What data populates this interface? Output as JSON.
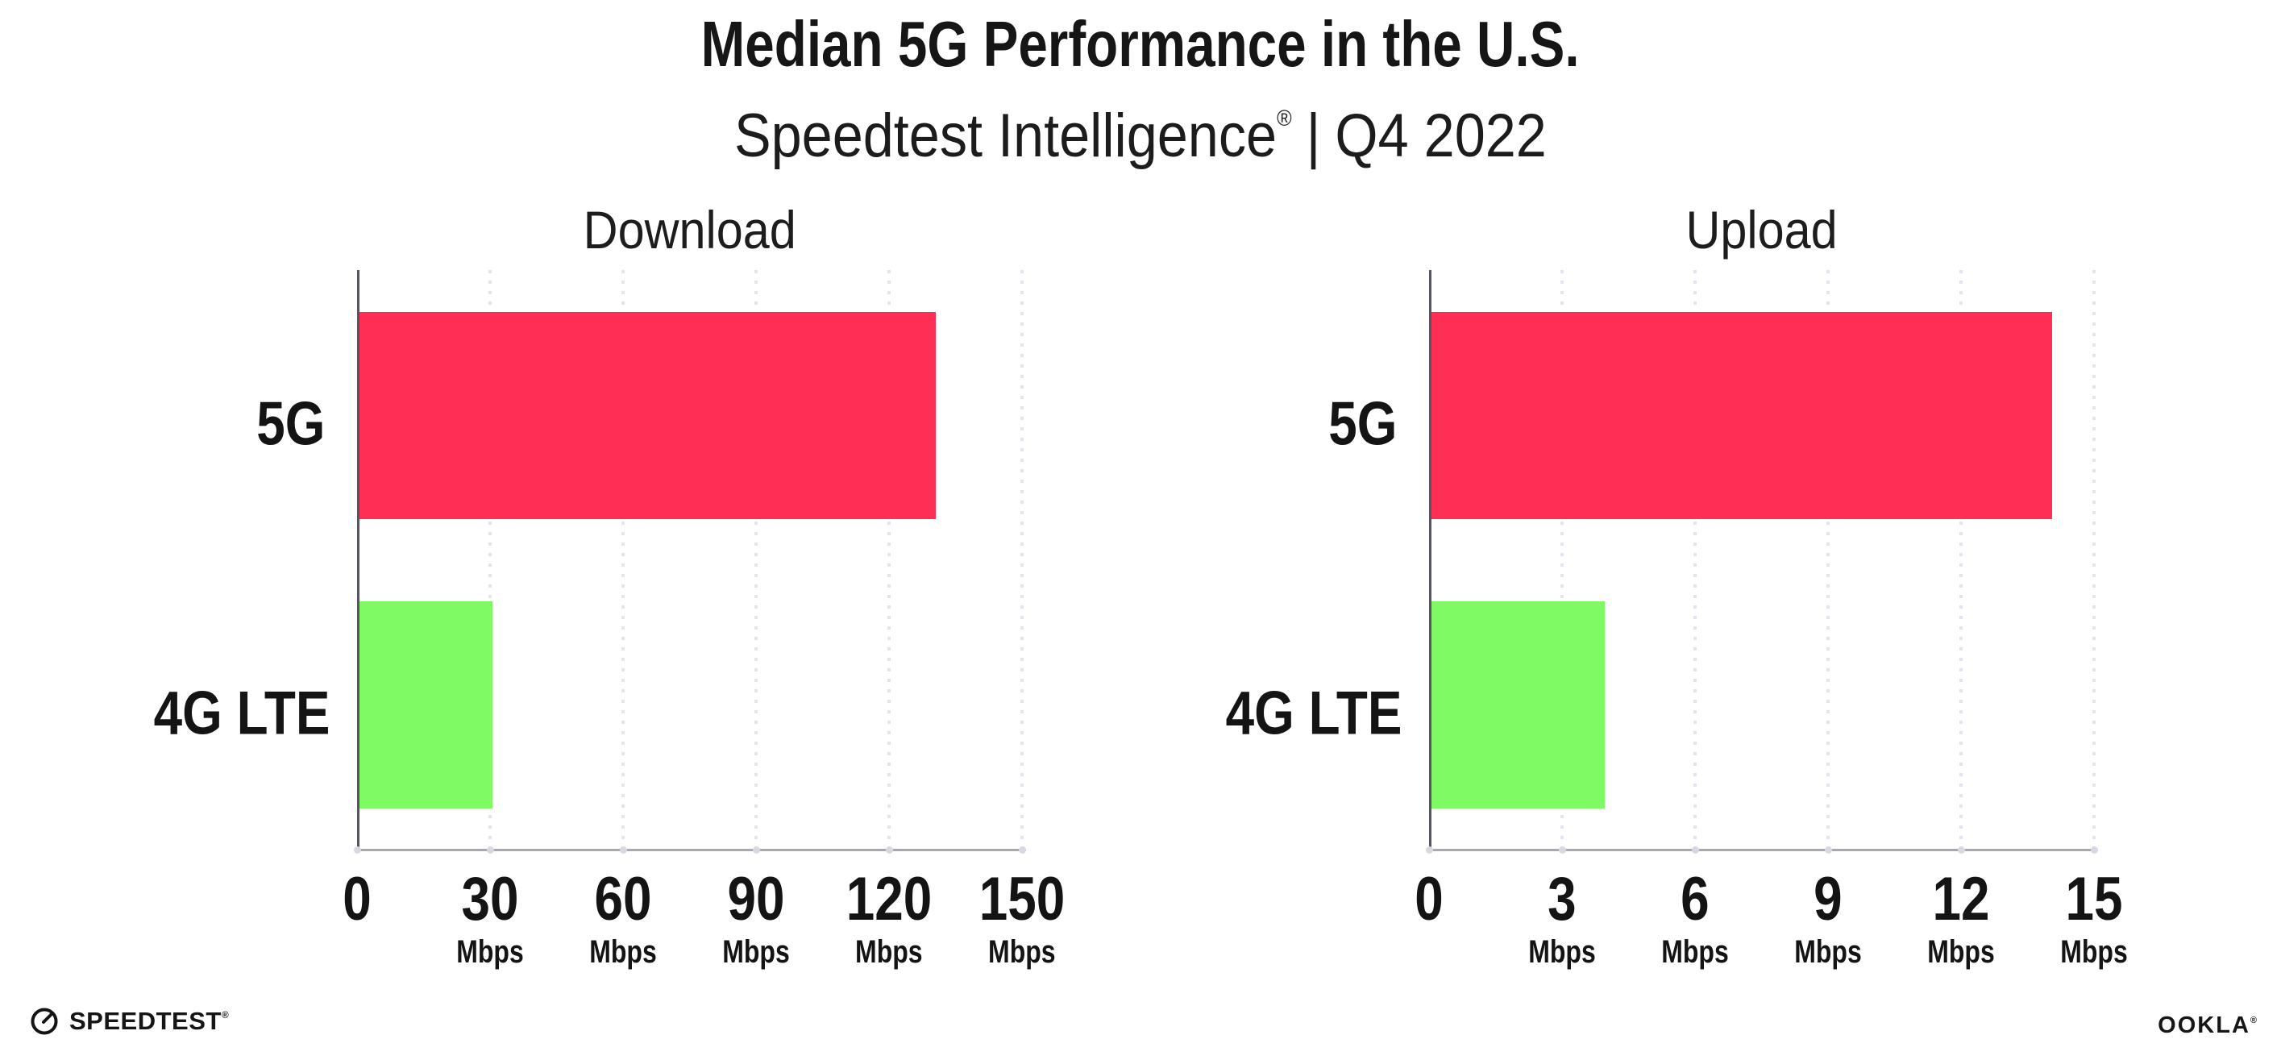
{
  "header": {
    "title": "Median 5G Performance in the U.S.",
    "subtitle": {
      "brand": "Speedtest Intelligence",
      "mark": "®",
      "separator": "|",
      "period": "Q4 2022"
    }
  },
  "chart_data": [
    {
      "type": "bar",
      "orientation": "horizontal",
      "title": "Download",
      "categories": [
        "5G",
        "4G LTE"
      ],
      "values": [
        130,
        30
      ],
      "unit": "Mbps",
      "xlim": [
        0,
        150
      ],
      "xticks": [
        0,
        30,
        60,
        90,
        120,
        150
      ],
      "bar_colors": [
        "#FF2E55",
        "#80FA64"
      ],
      "grid": "vertical-dotted",
      "legend": "none"
    },
    {
      "type": "bar",
      "orientation": "horizontal",
      "title": "Upload",
      "categories": [
        "5G",
        "4G LTE"
      ],
      "values": [
        14,
        3.9
      ],
      "unit": "Mbps",
      "xlim": [
        0,
        15
      ],
      "xticks": [
        0,
        3,
        6,
        9,
        12,
        15
      ],
      "bar_colors": [
        "#FF2E55",
        "#80FA64"
      ],
      "grid": "vertical-dotted",
      "legend": "none"
    }
  ],
  "colors": {
    "bar_5g": "#FF2E55",
    "bar_4g_lte": "#80FA64",
    "gridline": "#E4E3EF",
    "y_axis": "#55555F",
    "x_axis": "#A8A8AE",
    "text": "#161616",
    "background": "#FFFFFF"
  },
  "footer": {
    "speedtest_label": "SPEEDTEST",
    "speedtest_mark": "®",
    "ookla_label": "OOKLA",
    "ookla_mark": "®"
  }
}
